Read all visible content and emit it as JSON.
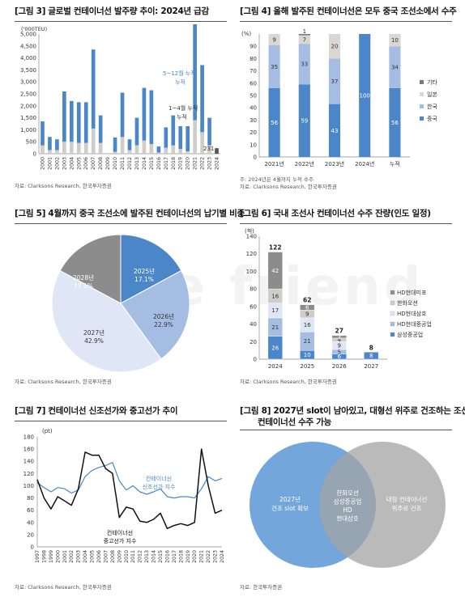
{
  "watermark": "true friend",
  "panels": {
    "p3": {
      "title": "[그림 3] 글로벌 컨테이너선 발주량 추이: 2024년 급감",
      "source": "자료: Clarksons Research, 한국투자증권"
    },
    "p4": {
      "title": "[그림 4] 올해 발주된 컨테이너선은 모두 중국 조선소에서 수주",
      "note": "주: 2024년은 4월까지 누적 수주",
      "source": "자료: Clarksons Research, 한국투자증권"
    },
    "p5": {
      "title": "[그림 5] 4월까지 중국 조선소에 발주된 컨테이너선의 납기별 비중",
      "source": "자료: Clarksons Research, 한국투자증권"
    },
    "p6": {
      "title": "[그림 6] 국내 조선사 컨테이너선 수주 잔량(인도 일정)",
      "source": "자료: Clarksons Research, 한국투자증권"
    },
    "p7": {
      "title": "[그림 7] 컨테이너선 신조선가와 중고선가 추이",
      "source": "자료: Clarksons Research, 한국투자증권"
    },
    "p8": {
      "title_line1": "[그림 8] 2027년 slot이 남아있고, 대형선 위주로 건조하는 조선사",
      "title_line2": "컨테이너선 수주 가능",
      "source": "자료: 한국투자증권"
    }
  },
  "chart_data": [
    {
      "id": "fig3",
      "type": "bar",
      "title": "글로벌 컨테이너선 발주량 추이: 2024년 급감",
      "unit_label": "('000TEU)",
      "ylim": [
        0,
        5000
      ],
      "yticks": [
        0,
        500,
        1000,
        1500,
        2000,
        2500,
        3000,
        3500,
        4000,
        4500,
        5000
      ],
      "ytick_labels": [
        "0",
        "500",
        "1,000",
        "1,500",
        "2,000",
        "2,500",
        "3,000",
        "3,500",
        "4,000",
        "4,500",
        "5,000"
      ],
      "categories": [
        "2000",
        "2001",
        "2002",
        "2003",
        "2004",
        "2005",
        "2006",
        "2007",
        "2008",
        "2009",
        "2010",
        "2011",
        "2012",
        "2013",
        "2014",
        "2015",
        "2016",
        "2017",
        "2018",
        "2019",
        "2020",
        "2021",
        "2022",
        "2023",
        "2024"
      ],
      "series": [
        {
          "name": "5~12월 누적",
          "color": "#4a86c8",
          "values": [
            1000,
            550,
            450,
            2100,
            1700,
            1700,
            1700,
            3300,
            1150,
            0,
            600,
            1850,
            450,
            1150,
            2200,
            2250,
            250,
            850,
            1250,
            950,
            1050,
            4500,
            2800,
            1150,
            0
          ]
        },
        {
          "name": "1~4월 누적",
          "color": "#d0ccc8",
          "values": [
            350,
            150,
            150,
            500,
            500,
            450,
            450,
            1050,
            450,
            0,
            80,
            700,
            150,
            350,
            550,
            400,
            50,
            250,
            350,
            200,
            100,
            1400,
            900,
            350,
            231
          ]
        }
      ],
      "annotations": [
        {
          "text": "5~12월 누적"
        },
        {
          "text": "1~4월 누적"
        },
        {
          "text": "231"
        }
      ]
    },
    {
      "id": "fig4",
      "type": "bar",
      "stacked": true,
      "title": "올해 발주된 컨테이너선은 모두 중국 조선소에서 수주",
      "ylim": [
        0,
        100
      ],
      "yticks": [
        0,
        10,
        20,
        30,
        40,
        50,
        60,
        70,
        80,
        90,
        100
      ],
      "ytick_labels": [
        "0",
        "10",
        "20",
        "30",
        "40",
        "50",
        "60",
        "70",
        "80",
        "90",
        "100"
      ],
      "unit_label": "(%)",
      "categories": [
        "2021년",
        "2022년",
        "2023년",
        "2024년",
        "누적"
      ],
      "series": [
        {
          "name": "중국",
          "color": "#4a86c8",
          "values": [
            56,
            59,
            43,
            100,
            56
          ]
        },
        {
          "name": "한국",
          "color": "#a6bde3",
          "values": [
            35,
            33,
            37,
            0,
            34
          ]
        },
        {
          "name": "일본",
          "color": "#dad6d2",
          "values": [
            9,
            7,
            20,
            0,
            10
          ]
        },
        {
          "name": "기타",
          "color": "#7a7a7a",
          "values": [
            0,
            1,
            0,
            0,
            0
          ]
        }
      ],
      "legend": [
        "기타",
        "일본",
        "한국",
        "중국"
      ],
      "legend_placement": "right"
    },
    {
      "id": "fig5",
      "type": "pie",
      "title": "4월까지 중국 조선소에 발주된 컨테이너선의 납기별 비중",
      "slices": [
        {
          "label": "2025년",
          "value": 17.1,
          "value_label": "17.1%",
          "color": "#4a86c8"
        },
        {
          "label": "2026년",
          "value": 22.9,
          "value_label": "22.9%",
          "color": "#a6bde3"
        },
        {
          "label": "2027년",
          "value": 42.9,
          "value_label": "42.9%",
          "color": "#dfe7f6"
        },
        {
          "label": "2028년",
          "value": 17.1,
          "value_label": "17.1%",
          "color": "#8c8c8c"
        }
      ]
    },
    {
      "id": "fig6",
      "type": "bar",
      "stacked": true,
      "title": "국내 조선사 컨테이너선 수주 잔량(인도 일정)",
      "unit_label": "(척)",
      "ylim": [
        0,
        140
      ],
      "yticks": [
        0,
        20,
        40,
        60,
        80,
        100,
        120,
        140
      ],
      "ytick_labels": [
        "0",
        "20",
        "40",
        "60",
        "80",
        "100",
        "120",
        "140"
      ],
      "categories": [
        "2024",
        "2025",
        "2026",
        "2027"
      ],
      "totals": [
        122,
        62,
        27,
        8
      ],
      "series": [
        {
          "name": "삼성중공업",
          "color": "#4a86c8",
          "values": [
            26,
            10,
            6,
            8
          ]
        },
        {
          "name": "HD현대중공업",
          "color": "#a6bde3",
          "values": [
            21,
            21,
            5,
            0
          ]
        },
        {
          "name": "HD현대삼호",
          "color": "#dfe7f6",
          "values": [
            17,
            16,
            9,
            0
          ]
        },
        {
          "name": "한화오션",
          "color": "#d0ccc8",
          "values": [
            16,
            9,
            4,
            0
          ]
        },
        {
          "name": "HD현대미포",
          "color": "#8c8c8c",
          "values": [
            42,
            6,
            3,
            0
          ]
        }
      ],
      "legend": [
        "HD현대미포",
        "한화오션",
        "HD현대삼호",
        "HD현대중공업",
        "삼성중공업"
      ],
      "legend_placement": "right"
    },
    {
      "id": "fig7",
      "type": "line",
      "title": "컨테이너선 신조선가와 중고선가 추이",
      "unit_label": "(pt)",
      "ylim": [
        0,
        180
      ],
      "yticks": [
        0,
        20,
        40,
        60,
        80,
        100,
        120,
        140,
        160,
        180
      ],
      "ytick_labels": [
        "0",
        "20",
        "40",
        "60",
        "80",
        "100",
        "120",
        "140",
        "160",
        "180"
      ],
      "x": [
        "1997",
        "1998",
        "1999",
        "2000",
        "2001",
        "2002",
        "2003",
        "2004",
        "2005",
        "2006",
        "2007",
        "2008",
        "2009",
        "2010",
        "2011",
        "2012",
        "2013",
        "2014",
        "2015",
        "2016",
        "2017",
        "2018",
        "2019",
        "2020",
        "2021",
        "2022",
        "2023",
        "2024"
      ],
      "series": [
        {
          "name": "컨테이너선 신조선가 지수",
          "color": "#4a86c8",
          "values": [
            105,
            97,
            90,
            97,
            95,
            88,
            93,
            115,
            125,
            130,
            133,
            138,
            108,
            93,
            100,
            90,
            86,
            90,
            95,
            82,
            80,
            82,
            82,
            80,
            95,
            115,
            108,
            112
          ]
        },
        {
          "name": "컨테이너선 중고선가 지수",
          "color": "#111111",
          "values": [
            110,
            80,
            62,
            82,
            75,
            68,
            95,
            155,
            150,
            150,
            128,
            120,
            48,
            65,
            62,
            42,
            40,
            45,
            55,
            30,
            35,
            38,
            35,
            40,
            160,
            100,
            55,
            60
          ]
        }
      ],
      "annotations": [
        {
          "text": "컨테이너선 신조선가 지수"
        },
        {
          "text": "컨테이너선 중고선가 지수"
        }
      ]
    },
    {
      "id": "fig8",
      "type": "venn",
      "title": "2027년 slot이 남아있고, 대형선 위주로 건조하는 조선사 컨테이너선 수주 가능",
      "sets": [
        {
          "label": "2027년 건조 slot 확보",
          "color": "#5a97d4"
        },
        {
          "label": "대형 컨테이너선 위주로 건조",
          "color": "#a3a3a3"
        }
      ],
      "intersection": [
        "한화오션",
        "삼성중공업",
        "HD",
        "현대삼호"
      ]
    }
  ]
}
